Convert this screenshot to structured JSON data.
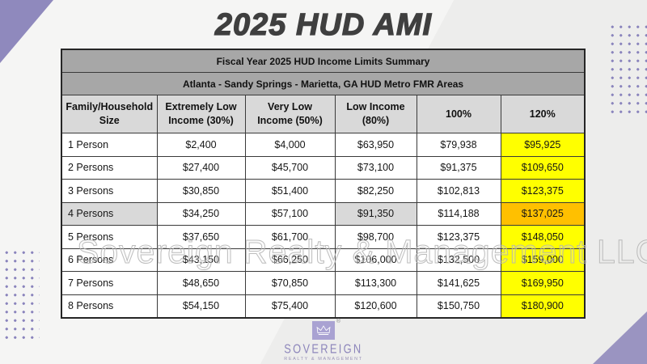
{
  "page": {
    "title": "2025 HUD AMI"
  },
  "table": {
    "title": "Fiscal Year 2025 HUD Income Limits Summary",
    "region": "Atlanta - Sandy Springs - Marietta, GA HUD Metro FMR Areas",
    "columns": [
      "Family/Household Size",
      "Extremely Low Income (30%)",
      "Very Low Income (50%)",
      "Low Income (80%)",
      "100%",
      "120%"
    ],
    "rows": [
      {
        "label": "1 Person",
        "values": [
          "$2,400",
          "$4,000",
          "$63,950",
          "$79,938",
          "$95,925"
        ],
        "highlighted": false
      },
      {
        "label": "2 Persons",
        "values": [
          "$27,400",
          "$45,700",
          "$73,100",
          "$91,375",
          "$109,650"
        ],
        "highlighted": false
      },
      {
        "label": "3 Persons",
        "values": [
          "$30,850",
          "$51,400",
          "$82,250",
          "$102,813",
          "$123,375"
        ],
        "highlighted": false
      },
      {
        "label": "4 Persons",
        "values": [
          "$34,250",
          "$57,100",
          "$91,350",
          "$114,188",
          "$137,025"
        ],
        "highlighted": true
      },
      {
        "label": "5 Persons",
        "values": [
          "$37,650",
          "$61,700",
          "$98,700",
          "$123,375",
          "$148,050"
        ],
        "highlighted": false
      },
      {
        "label": "6 Persons",
        "values": [
          "$43,150",
          "$66,250",
          "$106,000",
          "$132,500",
          "$159,000"
        ],
        "highlighted": false
      },
      {
        "label": "7 Persons",
        "values": [
          "$48,650",
          "$70,850",
          "$113,300",
          "$141,625",
          "$169,950"
        ],
        "highlighted": false
      },
      {
        "label": "8 Persons",
        "values": [
          "$54,150",
          "$75,400",
          "$120,600",
          "$150,750",
          "$180,900"
        ],
        "highlighted": false
      }
    ]
  },
  "watermark": "Sovereign Realty & Management LLC",
  "logo": {
    "name": "SOVEREIGN",
    "tagline": "REALTY & MANAGEMENT",
    "registered_mark": "®",
    "crown_icon": "crown-icon"
  },
  "colors": {
    "accent_purple": "#8F89BD",
    "dot_purple": "#8B85BD",
    "highlight_yellow": "#FFFF00",
    "highlight_orange": "#FFC000",
    "header_gray": "#A7A7A7",
    "subheader_gray": "#D9D9D9",
    "title_text": "#3F3F3F"
  }
}
